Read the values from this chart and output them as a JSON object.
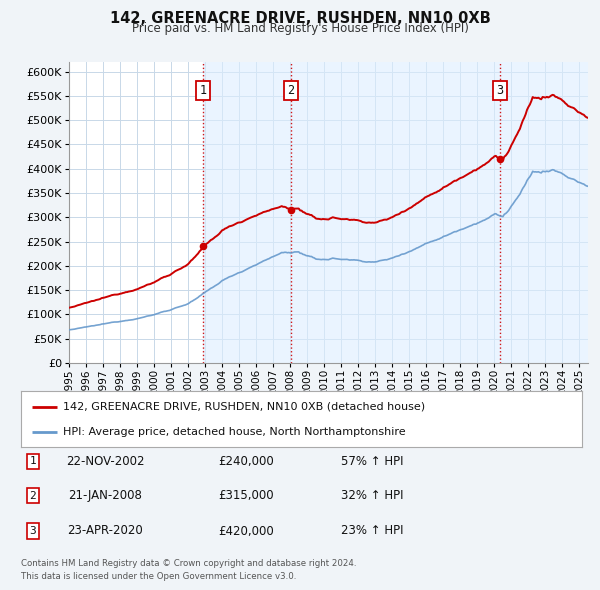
{
  "title": "142, GREENACRE DRIVE, RUSHDEN, NN10 0XB",
  "subtitle": "Price paid vs. HM Land Registry's House Price Index (HPI)",
  "background_color": "#f0f4f8",
  "plot_bg_color": "#ffffff",
  "grid_color": "#c8d8e8",
  "hpi_color": "#6699cc",
  "price_color": "#cc0000",
  "shade_color": "#ddeeff",
  "transactions": [
    {
      "label": "1",
      "date_str": "22-NOV-2002",
      "date_x": 2002.896,
      "price": 240000,
      "hpi_pct": "57%"
    },
    {
      "label": "2",
      "date_str": "21-JAN-2008",
      "date_x": 2008.055,
      "price": 315000,
      "hpi_pct": "32%"
    },
    {
      "label": "3",
      "date_str": "23-APR-2020",
      "date_x": 2020.313,
      "price": 420000,
      "hpi_pct": "23%"
    }
  ],
  "legend_line1": "142, GREENACRE DRIVE, RUSHDEN, NN10 0XB (detached house)",
  "legend_line2": "HPI: Average price, detached house, North Northamptonshire",
  "footer1": "Contains HM Land Registry data © Crown copyright and database right 2024.",
  "footer2": "This data is licensed under the Open Government Licence v3.0.",
  "xmin": 1995,
  "xmax": 2025.5,
  "ymin": 0,
  "ymax": 620000,
  "yticks": [
    0,
    50000,
    100000,
    150000,
    200000,
    250000,
    300000,
    350000,
    400000,
    450000,
    500000,
    550000,
    600000
  ]
}
